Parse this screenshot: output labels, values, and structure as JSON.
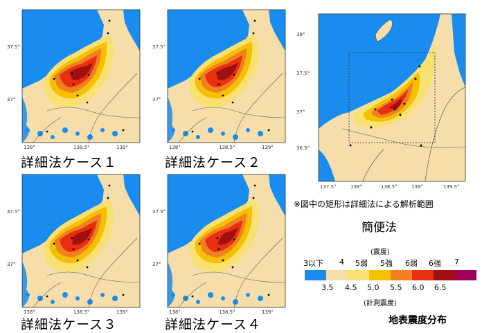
{
  "colors": {
    "sea": "#1a8cf0",
    "i3": "#f6deaa",
    "i4": "#f8e170",
    "i5w": "#f5c000",
    "i5s": "#f08020",
    "i6w": "#e83010",
    "i6s": "#a01010",
    "i7": "#a0005a"
  },
  "panels": [
    {
      "caption": "詳細法ケース１"
    },
    {
      "caption": "詳細法ケース２"
    },
    {
      "caption": "詳細法ケース３"
    },
    {
      "caption": "詳細法ケース４"
    }
  ],
  "small_map_ticks": {
    "lat": [
      "37.5°",
      "37°"
    ],
    "lon": [
      "138°",
      "138.5°",
      "139°"
    ]
  },
  "large_map_ticks": {
    "lat": [
      "38°",
      "37.5°",
      "37°",
      "36.5°"
    ],
    "lon": [
      "137.5°",
      "138°",
      "138.5°",
      "139°",
      "139.5°"
    ]
  },
  "note": "※図中の矩形は詳細法による解析範囲",
  "simple_label": "簡便法",
  "legend": {
    "header": "(震度)",
    "classes": [
      "3以下",
      "4",
      "5弱",
      "5強",
      "6弱",
      "6強",
      "7"
    ],
    "ticks": [
      "3.5",
      "4.5",
      "5.0",
      "5.5",
      "6.0",
      "6.5"
    ],
    "footer": "(計測震度)"
  },
  "title": "地表震度分布"
}
